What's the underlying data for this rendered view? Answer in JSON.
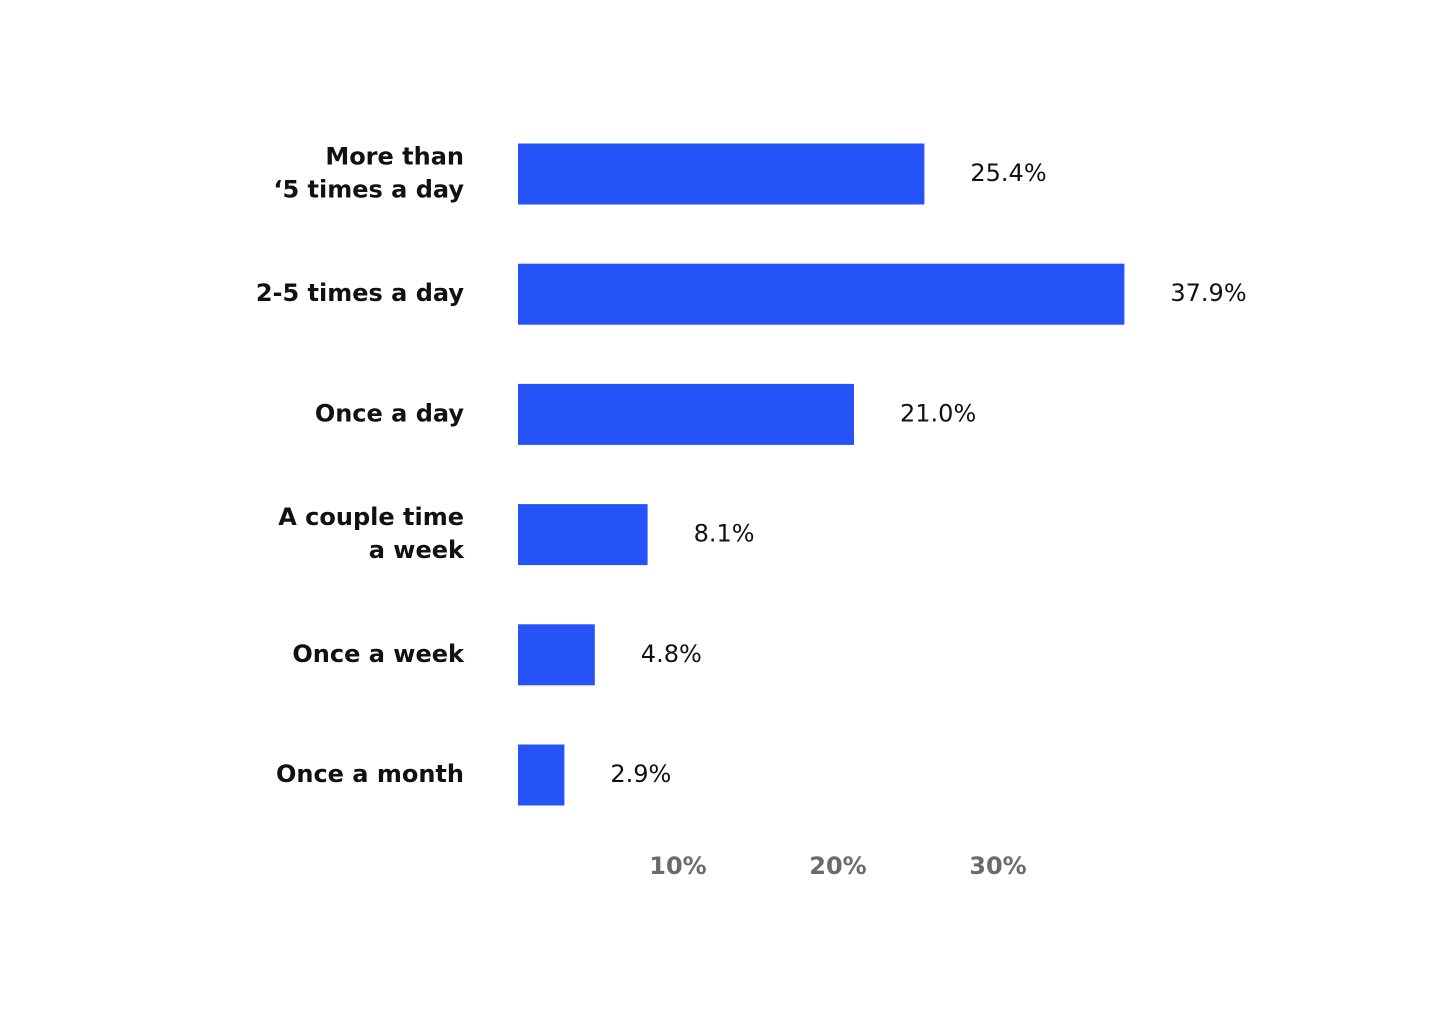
{
  "chart_data": {
    "type": "bar",
    "orientation": "horizontal",
    "categories": [
      "More than\n‘5 times a day",
      "2-5 times a day",
      "Once a day",
      "A couple time\na week",
      "Once a week",
      "Once a month"
    ],
    "values": [
      25.4,
      37.9,
      21.0,
      8.1,
      4.8,
      2.9
    ],
    "value_labels": [
      "25.4%",
      "37.9%",
      "21.0%",
      "8.1%",
      "4.8%",
      "2.9%"
    ],
    "color": "#2653f7",
    "xlim": [
      0,
      40
    ],
    "xticks": [
      {
        "value": 10,
        "label": "10%"
      },
      {
        "value": 20,
        "label": "20%"
      },
      {
        "value": 30,
        "label": "30%"
      }
    ],
    "grid": false
  }
}
